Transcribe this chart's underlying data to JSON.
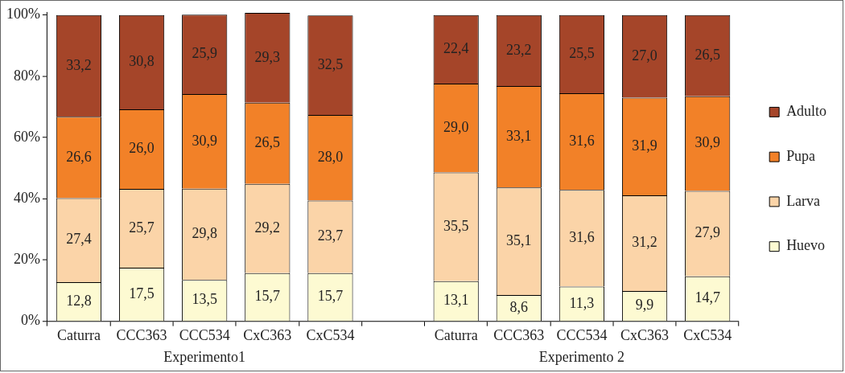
{
  "chart_data": {
    "type": "bar",
    "stacked": true,
    "categories": [
      "Caturra",
      "CCC363",
      "CCC534",
      "CxC363",
      "CxC534",
      null,
      "Caturra",
      "CCC363",
      "CCC534",
      "CxC363",
      "CxC534"
    ],
    "series": [
      {
        "name": "Huevo",
        "color": "#fdfad2",
        "values": [
          12.8,
          17.5,
          13.5,
          15.7,
          15.7,
          null,
          13.1,
          8.6,
          11.3,
          9.9,
          14.7
        ],
        "value_labels": [
          "12,8",
          "17,5",
          "13,5",
          "15,7",
          "15,7",
          null,
          "13,1",
          "8,6",
          "11,3",
          "9,9",
          "14,7"
        ]
      },
      {
        "name": "Larva",
        "color": "#fbd4a8",
        "values": [
          27.4,
          25.7,
          29.8,
          29.2,
          23.7,
          null,
          35.5,
          35.1,
          31.6,
          31.2,
          27.9
        ],
        "value_labels": [
          "27,4",
          "25,7",
          "29,8",
          "29,2",
          "23,7",
          null,
          "35,5",
          "35,1",
          "31,6",
          "31,2",
          "27,9"
        ]
      },
      {
        "name": "Pupa",
        "color": "#f28128",
        "values": [
          26.6,
          26.0,
          30.9,
          26.5,
          28.0,
          null,
          29.0,
          33.1,
          31.6,
          31.9,
          30.9
        ],
        "value_labels": [
          "26,6",
          "26,0",
          "30,9",
          "26,5",
          "28,0",
          null,
          "29,0",
          "33,1",
          "31,6",
          "31,9",
          "30,9"
        ]
      },
      {
        "name": "Adulto",
        "color": "#a54529",
        "values": [
          33.2,
          30.8,
          25.9,
          29.3,
          32.5,
          null,
          22.4,
          23.2,
          25.5,
          27.0,
          26.5
        ],
        "value_labels": [
          "33,2",
          "30,8",
          "25,9",
          "29,3",
          "32,5",
          null,
          "22,4",
          "23,2",
          "25,5",
          "27,0",
          "26,5"
        ]
      }
    ],
    "ylim": [
      0,
      101
    ],
    "yticks": [
      {
        "value": 0,
        "label": "0%"
      },
      {
        "value": 20,
        "label": "20%"
      },
      {
        "value": 40,
        "label": "40%"
      },
      {
        "value": 60,
        "label": "60%"
      },
      {
        "value": 80,
        "label": "80%"
      },
      {
        "value": 100,
        "label": "100%"
      }
    ],
    "grid": false,
    "legend": "right",
    "annotations": [
      "Experimento1",
      "Experimento 2"
    ]
  }
}
